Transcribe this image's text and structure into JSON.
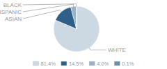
{
  "chart_data": {
    "type": "pie",
    "categories": [
      "WHITE",
      "ASIAN",
      "HISPANIC",
      "BLACK"
    ],
    "values": [
      81.4,
      14.5,
      4.0,
      0.1
    ],
    "value_labels": [
      "81.4%",
      "14.5%",
      "4.0%",
      "0.1%"
    ],
    "colors": [
      "#ccd9e3",
      "#2e5f8a",
      "#97b3c4",
      "#6b8fa8"
    ],
    "legend": "bottom"
  }
}
